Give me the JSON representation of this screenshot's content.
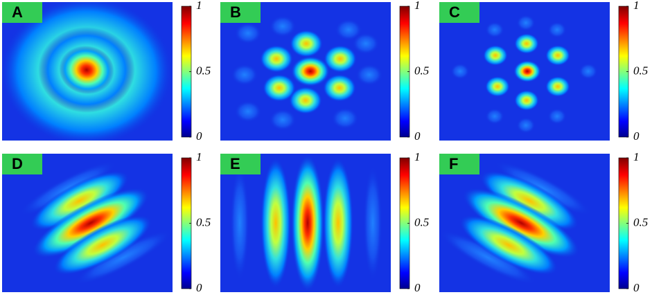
{
  "panels": [
    {
      "label": "A",
      "colorbar": {
        "lim": [
          0,
          1
        ],
        "ticks": [
          0,
          0.5,
          1
        ]
      }
    },
    {
      "label": "B",
      "colorbar": {
        "lim": [
          0,
          1
        ],
        "ticks": [
          0,
          0.5,
          1
        ]
      }
    },
    {
      "label": "C",
      "colorbar": {
        "lim": [
          0,
          1
        ],
        "ticks": [
          0,
          0.5,
          1
        ]
      }
    },
    {
      "label": "D",
      "colorbar": {
        "lim": [
          0,
          1
        ],
        "ticks": [
          0,
          0.5,
          1
        ]
      }
    },
    {
      "label": "E",
      "colorbar": {
        "lim": [
          0,
          1
        ],
        "ticks": [
          0,
          0.5,
          1
        ]
      }
    },
    {
      "label": "F",
      "colorbar": {
        "lim": [
          0,
          1
        ],
        "ticks": [
          0,
          0.5,
          1
        ]
      }
    }
  ]
}
